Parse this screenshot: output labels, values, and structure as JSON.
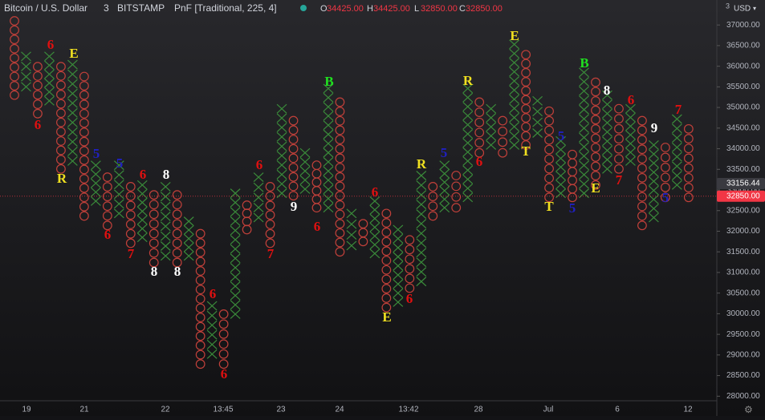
{
  "chart_data": {
    "type": "pnf",
    "header": {
      "symbol": "Bitcoin / U.S. Dollar",
      "interval": "3",
      "exchange": "BITSTAMP",
      "study": "PnF [Traditional, 225, 4]",
      "ohlc": [
        {
          "key": "O",
          "value": "34425.00"
        },
        {
          "key": "H",
          "value": "34425.00"
        },
        {
          "key": "L",
          "value": "32850.00"
        },
        {
          "key": "C",
          "value": "32850.00"
        }
      ]
    },
    "currency": "USD",
    "scale_label": "3",
    "box_size": 225,
    "x_color": "#3a8a3a",
    "o_color": "#c0403a",
    "ylim": [
      27800,
      37120
    ],
    "yticks": [
      {
        "value": 28000,
        "label": "28000.00"
      },
      {
        "value": 28500,
        "label": "28500.00"
      },
      {
        "value": 29000,
        "label": "29000.00"
      },
      {
        "value": 29500,
        "label": "29500.00"
      },
      {
        "value": 30000,
        "label": "30000.00"
      },
      {
        "value": 30500,
        "label": "30500.00"
      },
      {
        "value": 31000,
        "label": "31000.00"
      },
      {
        "value": 31500,
        "label": "31500.00"
      },
      {
        "value": 32000,
        "label": "32000.00"
      },
      {
        "value": 32500,
        "label": "32500.00"
      },
      {
        "value": 33000,
        "label": "33000.00"
      },
      {
        "value": 33500,
        "label": "33500.00"
      },
      {
        "value": 34000,
        "label": "34000.00"
      },
      {
        "value": 34500,
        "label": "34500.00"
      },
      {
        "value": 35000,
        "label": "35000.00"
      },
      {
        "value": 35500,
        "label": "35500.00"
      },
      {
        "value": 36000,
        "label": "36000.00"
      },
      {
        "value": 36500,
        "label": "36500.00"
      },
      {
        "value": 37000,
        "label": "37000.00"
      }
    ],
    "price_labels": [
      {
        "value": 33156.44,
        "label": "33156.44",
        "color": "#3a3a40"
      },
      {
        "value": 32850,
        "label": "32850.00",
        "color": "#f23645"
      }
    ],
    "x_labels": [
      "19",
      "21",
      "22",
      "13:45",
      "23",
      "24",
      "13:42",
      "28",
      "Jul",
      "6",
      "12"
    ],
    "columns": [
      {
        "type": "O",
        "high": 37100,
        "low": 35300
      },
      {
        "type": "X",
        "high": 36240,
        "low": 35500
      },
      {
        "type": "O",
        "high": 35990,
        "low": 34850
      },
      {
        "type": "X",
        "high": 36240,
        "low": 35160
      },
      {
        "type": "O",
        "high": 35990,
        "low": 33510
      },
      {
        "type": "X",
        "high": 36040,
        "low": 33700
      },
      {
        "type": "O",
        "high": 35750,
        "low": 32370
      },
      {
        "type": "X",
        "high": 33600,
        "low": 32730
      },
      {
        "type": "O",
        "high": 33310,
        "low": 32140
      },
      {
        "type": "X",
        "high": 33600,
        "low": 32430
      },
      {
        "type": "O",
        "high": 33080,
        "low": 31710
      },
      {
        "type": "X",
        "high": 33120,
        "low": 31850
      },
      {
        "type": "O",
        "high": 32880,
        "low": 31240
      },
      {
        "type": "X",
        "high": 33080,
        "low": 31400
      },
      {
        "type": "O",
        "high": 32880,
        "low": 31240
      },
      {
        "type": "X",
        "high": 32240,
        "low": 31400
      },
      {
        "type": "O",
        "high": 31940,
        "low": 28780
      },
      {
        "type": "X",
        "high": 30190,
        "low": 29020
      },
      {
        "type": "O",
        "high": 29990,
        "low": 28780
      },
      {
        "type": "X",
        "high": 32920,
        "low": 29990
      },
      {
        "type": "O",
        "high": 32630,
        "low": 32040
      },
      {
        "type": "X",
        "high": 33310,
        "low": 32330
      },
      {
        "type": "O",
        "high": 33080,
        "low": 31710
      },
      {
        "type": "X",
        "high": 34970,
        "low": 32920
      },
      {
        "type": "O",
        "high": 34680,
        "low": 32860
      },
      {
        "type": "X",
        "high": 33900,
        "low": 33020
      },
      {
        "type": "O",
        "high": 33600,
        "low": 32570
      },
      {
        "type": "X",
        "high": 35460,
        "low": 32570
      },
      {
        "type": "O",
        "high": 35130,
        "low": 31500
      },
      {
        "type": "X",
        "high": 32430,
        "low": 31650
      },
      {
        "type": "O",
        "high": 32180,
        "low": 31750
      },
      {
        "type": "X",
        "high": 32730,
        "low": 31460
      },
      {
        "type": "O",
        "high": 32430,
        "low": 30150
      },
      {
        "type": "X",
        "high": 32040,
        "low": 30280
      },
      {
        "type": "O",
        "high": 31790,
        "low": 30620
      },
      {
        "type": "X",
        "high": 33350,
        "low": 30780
      },
      {
        "type": "O",
        "high": 33080,
        "low": 32370
      },
      {
        "type": "X",
        "high": 33600,
        "low": 32570
      },
      {
        "type": "O",
        "high": 33350,
        "low": 32570
      },
      {
        "type": "X",
        "high": 35460,
        "low": 32820
      },
      {
        "type": "O",
        "high": 35130,
        "low": 33900
      },
      {
        "type": "X",
        "high": 34970,
        "low": 34090
      },
      {
        "type": "O",
        "high": 34680,
        "low": 33900
      },
      {
        "type": "X",
        "high": 36530,
        "low": 34090
      },
      {
        "type": "O",
        "high": 36280,
        "low": 34090
      },
      {
        "type": "X",
        "high": 35160,
        "low": 34380
      },
      {
        "type": "O",
        "high": 34910,
        "low": 32820
      },
      {
        "type": "X",
        "high": 34190,
        "low": 32920
      },
      {
        "type": "O",
        "high": 33860,
        "low": 32820
      },
      {
        "type": "X",
        "high": 35850,
        "low": 32920
      },
      {
        "type": "O",
        "high": 35610,
        "low": 33120
      },
      {
        "type": "X",
        "high": 35300,
        "low": 33510
      },
      {
        "type": "O",
        "high": 34970,
        "low": 33510
      },
      {
        "type": "X",
        "high": 34970,
        "low": 33700
      },
      {
        "type": "O",
        "high": 34680,
        "low": 32140
      },
      {
        "type": "X",
        "high": 34090,
        "low": 32330
      },
      {
        "type": "O",
        "high": 34030,
        "low": 32820
      },
      {
        "type": "X",
        "high": 34720,
        "low": 33120
      },
      {
        "type": "O",
        "high": 34480,
        "low": 32820
      }
    ],
    "annotations": [
      {
        "text": "6",
        "color": "#e01010"
      },
      {
        "text": "E",
        "color": "#f0e020"
      },
      {
        "text": "6",
        "color": "#e01010"
      },
      {
        "text": "R",
        "color": "#f0e020"
      },
      {
        "text": "5",
        "color": "#2020c0"
      },
      {
        "text": "5",
        "color": "#2020c0"
      },
      {
        "text": "6",
        "color": "#e01010"
      },
      {
        "text": "8",
        "color": "#ffffff"
      },
      {
        "text": "6",
        "color": "#e01010"
      },
      {
        "text": "7",
        "color": "#e01010"
      },
      {
        "text": "8",
        "color": "#ffffff"
      },
      {
        "text": "8",
        "color": "#ffffff"
      },
      {
        "text": "6",
        "color": "#e01010"
      },
      {
        "text": "6",
        "color": "#e01010"
      },
      {
        "text": "6",
        "color": "#e01010"
      },
      {
        "text": "7",
        "color": "#e01010"
      },
      {
        "text": "9",
        "color": "#ffffff"
      },
      {
        "text": "B",
        "color": "#20e020"
      },
      {
        "text": "6",
        "color": "#e01010"
      },
      {
        "text": "6",
        "color": "#e01010"
      },
      {
        "text": "E",
        "color": "#f0e020"
      },
      {
        "text": "6",
        "color": "#e01010"
      },
      {
        "text": "R",
        "color": "#f0e020"
      },
      {
        "text": "5",
        "color": "#2020c0"
      },
      {
        "text": "R",
        "color": "#f0e020"
      },
      {
        "text": "6",
        "color": "#e01010"
      },
      {
        "text": "E",
        "color": "#f0e020"
      },
      {
        "text": "T",
        "color": "#f0e020"
      },
      {
        "text": "5",
        "color": "#2020c0"
      },
      {
        "text": "T",
        "color": "#f0e020"
      },
      {
        "text": "5",
        "color": "#2020c0"
      },
      {
        "text": "B",
        "color": "#20e020"
      },
      {
        "text": "E",
        "color": "#f0e020"
      },
      {
        "text": "8",
        "color": "#ffffff"
      },
      {
        "text": "6",
        "color": "#e01010"
      },
      {
        "text": "7",
        "color": "#e01010"
      },
      {
        "text": "9",
        "color": "#ffffff"
      },
      {
        "text": "7",
        "color": "#e01010"
      },
      {
        "text": "5",
        "color": "#2020c0"
      }
    ]
  }
}
